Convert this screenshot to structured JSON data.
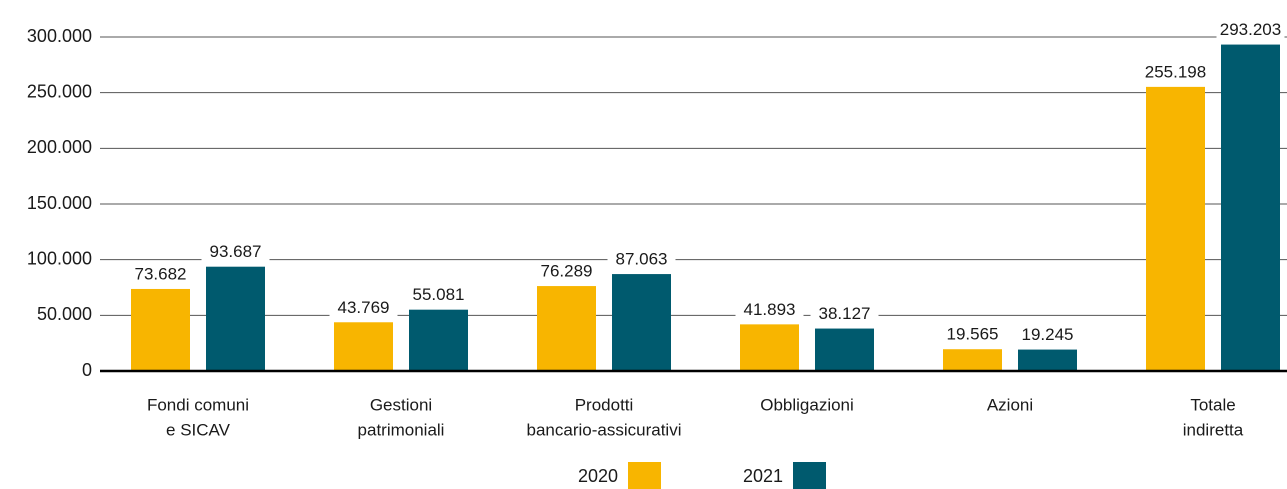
{
  "chart_data": {
    "type": "bar",
    "categories": [
      [
        "Fondi comuni",
        "e SICAV"
      ],
      [
        "Gestioni",
        "patrimoniali"
      ],
      [
        "Prodotti",
        "bancario-assicurativi"
      ],
      [
        "Obbligazioni"
      ],
      [
        "Azioni"
      ],
      [
        "Totale",
        "indiretta"
      ]
    ],
    "series": [
      {
        "name": "2020",
        "color": "#f8b500",
        "values": [
          73682,
          43769,
          76289,
          41893,
          19565,
          255198
        ],
        "value_labels": [
          "73.682",
          "43.769",
          "76.289",
          "41.893",
          "19.565",
          "255.198"
        ]
      },
      {
        "name": "2021",
        "color": "#005a6e",
        "values": [
          93687,
          55081,
          87063,
          38127,
          19245,
          293203
        ],
        "value_labels": [
          "93.687",
          "55.081",
          "87.063",
          "38.127",
          "19.245",
          "293.203"
        ]
      }
    ],
    "ylim": [
      0,
      300000
    ],
    "yticks": [
      {
        "value": 0,
        "label": "0"
      },
      {
        "value": 50000,
        "label": "50.000"
      },
      {
        "value": 100000,
        "label": "100.000"
      },
      {
        "value": 150000,
        "label": "150.000"
      },
      {
        "value": 200000,
        "label": "200.000"
      },
      {
        "value": 250000,
        "label": "250.000"
      },
      {
        "value": 300000,
        "label": "300.000"
      }
    ],
    "grid": true,
    "legend": "bottom"
  }
}
